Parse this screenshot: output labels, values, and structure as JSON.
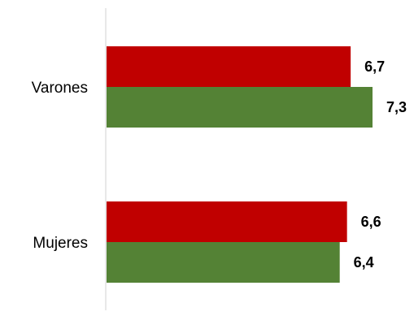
{
  "chart_data": {
    "type": "bar",
    "orientation": "horizontal",
    "categories": [
      "Varones",
      "Mujeres"
    ],
    "series": [
      {
        "values": [
          6.7,
          6.6
        ],
        "value_labels": [
          "6,7",
          "6,6"
        ],
        "color": "#C00000"
      },
      {
        "values": [
          7.3,
          6.4
        ],
        "value_labels": [
          "7,3",
          "6,4"
        ],
        "color": "#548235"
      }
    ],
    "xlim": [
      0,
      8
    ],
    "grid": false,
    "legend": "none"
  }
}
